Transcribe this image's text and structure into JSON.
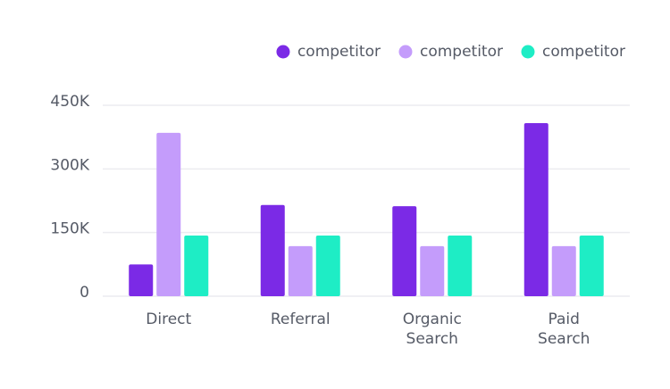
{
  "chart_data": {
    "type": "bar",
    "categories": [
      "Direct",
      "Referral",
      "Organic Search",
      "Paid Search"
    ],
    "series": [
      {
        "name": "competitor",
        "color": "#7b2ae6",
        "values": [
          75000,
          215000,
          212000,
          408000
        ]
      },
      {
        "name": "competitor",
        "color": "#c49cfb",
        "values": [
          385000,
          118000,
          118000,
          118000
        ]
      },
      {
        "name": "competitor",
        "color": "#1eedc5",
        "values": [
          143000,
          143000,
          143000,
          143000
        ]
      }
    ],
    "ylim": [
      0,
      450000
    ],
    "yticks": [
      0,
      {
        "value": 150000,
        "label": "150K"
      },
      {
        "value": 300000,
        "label": "300K"
      },
      {
        "value": 450000,
        "label": "450K"
      }
    ],
    "grid": true,
    "legend": "top-right"
  }
}
